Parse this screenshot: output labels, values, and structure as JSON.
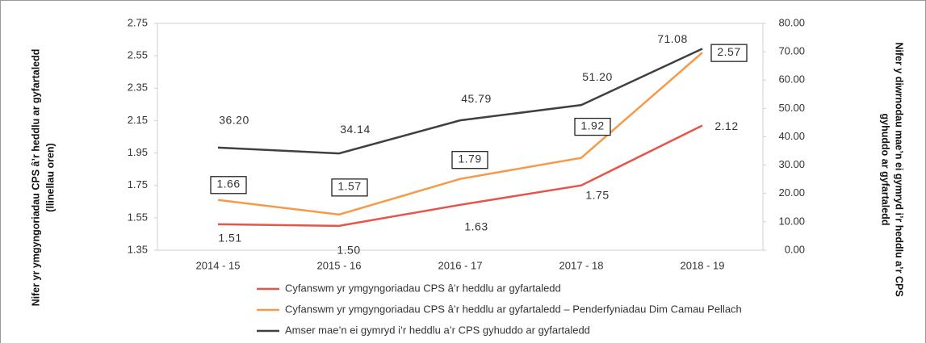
{
  "chart_data": {
    "type": "line",
    "ylabel": [
      "Nifer yr ymgyngoriadau CPS â’r heddlu ar gyfartaledd",
      "(llinellau oren)"
    ],
    "y2label": [
      "Nifer y diwrnodau mae’n ei gymryd i’r heddlu a’r CPS",
      "gyhuddo ar gyfartaledd"
    ],
    "categories": [
      "2014 - 15",
      "2015 - 16",
      "2016 - 17",
      "2017 - 18",
      "2018 - 19"
    ],
    "ylim": [
      1.35,
      2.75
    ],
    "yticks": [
      1.35,
      1.55,
      1.75,
      1.95,
      2.15,
      2.35,
      2.55,
      2.75
    ],
    "y2lim": [
      0,
      80
    ],
    "y2ticks": [
      {
        "value": 0,
        "label": "0.00"
      },
      {
        "value": 10,
        "label": "10.00"
      },
      {
        "value": 20,
        "label": "20.00"
      },
      {
        "value": 30,
        "label": "30.00"
      },
      {
        "value": 40,
        "label": "40.00"
      },
      {
        "value": 50,
        "label": "50.00"
      },
      {
        "value": 60,
        "label": "60.00"
      },
      {
        "value": 70,
        "label": "70.00"
      },
      {
        "value": 80,
        "label": "80.00"
      }
    ],
    "grid": false,
    "legend": "bottom",
    "series": [
      {
        "name": "Cyfanswm yr ymgyngoriadau CPS â’r heddlu ar gyfartaledd",
        "color": "#e8534a",
        "values": [
          1.51,
          1.5,
          1.63,
          1.75,
          2.12
        ],
        "value_labels": [
          "1.51",
          "1.50",
          "1.63",
          "1.75",
          "2.12"
        ]
      },
      {
        "name": "Cyfanswm yr ymgyngoriadau CPS â’r heddlu ar gyfartaledd – Penderfyniadau Dim Camau Pellach",
        "color": "#f59a4a",
        "values": [
          1.66,
          1.57,
          1.79,
          1.92,
          2.57
        ],
        "value_labels": [
          "1.66",
          "1.57",
          "1.79",
          "1.92",
          "2.57"
        ]
      },
      {
        "name": "Amser mae’n ei gymryd i’r heddlu a’r CPS gyhuddo ar gyfartaledd",
        "color": "#404040",
        "axis": "y2",
        "values": [
          36.2,
          34.14,
          45.79,
          51.2,
          71.08
        ],
        "value_labels": [
          "36.20",
          "34.14",
          "45.79",
          "51.20",
          "71.08"
        ]
      }
    ]
  }
}
